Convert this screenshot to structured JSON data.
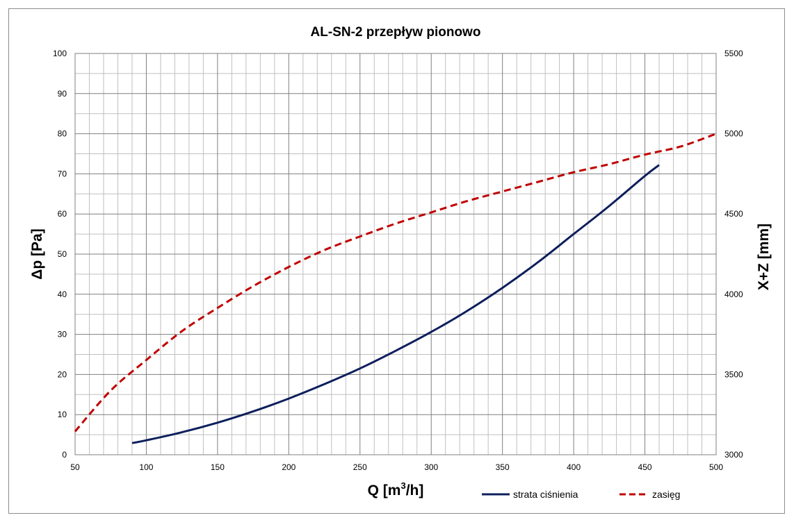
{
  "chart_data": {
    "type": "line",
    "title": "AL-SN-2 przepływ pionowo",
    "xlabel": "Q [m",
    "xlabel_sup": "3",
    "xlabel_tail": "/h]",
    "ylabel": "Δp [Pa]",
    "y2label": "X+Z [mm]",
    "xlim": [
      50,
      500
    ],
    "ylim": [
      0,
      100
    ],
    "y2lim": [
      3000,
      5500
    ],
    "xticks": [
      "50",
      "100",
      "150",
      "200",
      "250",
      "300",
      "350",
      "400",
      "450",
      "500"
    ],
    "yticks": [
      "0",
      "10",
      "20",
      "30",
      "40",
      "50",
      "60",
      "70",
      "80",
      "90",
      "100"
    ],
    "y2ticks": [
      "3000",
      "3500",
      "4000",
      "4500",
      "5000",
      "5500"
    ],
    "grid": true,
    "legend_position": "bottom-right",
    "series": [
      {
        "name": "strata ciśnienia",
        "axis": "left",
        "color": "#0d1f5c",
        "style": "solid",
        "x": [
          90,
          100,
          125,
          150,
          175,
          200,
          225,
          250,
          275,
          300,
          325,
          350,
          375,
          400,
          425,
          450,
          460
        ],
        "y": [
          2.9,
          3.6,
          5.6,
          8.0,
          10.8,
          14.0,
          17.6,
          21.5,
          25.9,
          30.6,
          35.8,
          41.6,
          48.0,
          55.0,
          62.0,
          69.5,
          72.2
        ]
      },
      {
        "name": "zasięg",
        "axis": "right",
        "color": "#c00000",
        "style": "dashed",
        "x": [
          50,
          75,
          100,
          125,
          150,
          175,
          200,
          225,
          250,
          275,
          300,
          325,
          350,
          375,
          400,
          425,
          450,
          475,
          500
        ],
        "y": [
          3145,
          3400,
          3590,
          3770,
          3915,
          4050,
          4170,
          4275,
          4360,
          4440,
          4510,
          4580,
          4640,
          4700,
          4760,
          4810,
          4870,
          4920,
          5000
        ]
      }
    ]
  }
}
